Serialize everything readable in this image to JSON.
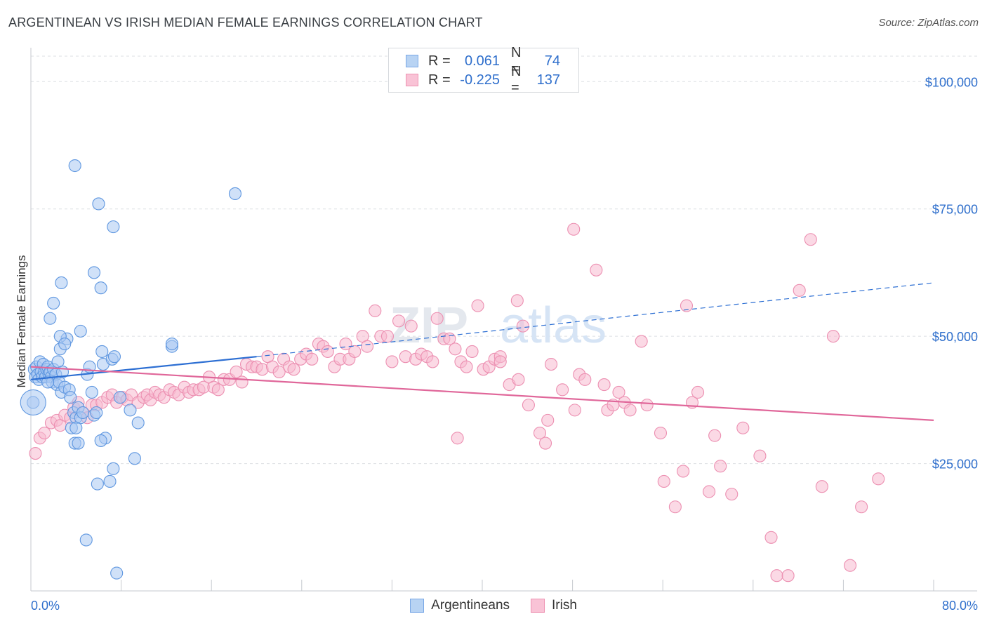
{
  "title": "ARGENTINEAN VS IRISH MEDIAN FEMALE EARNINGS CORRELATION CHART",
  "source": "Source: ZipAtlas.com",
  "watermark": {
    "zip": "ZIP",
    "atlas": "atlas"
  },
  "legend": {
    "r_label": "R =",
    "n_label": "N =",
    "rows": [
      {
        "name": "Argentineans",
        "r": "0.061",
        "n": "74",
        "fill": "#b8d3f3",
        "stroke": "#7aa8e6"
      },
      {
        "name": "Irish",
        "r": "-0.225",
        "n": "137",
        "fill": "#f9c3d6",
        "stroke": "#ee93b2"
      }
    ]
  },
  "colors": {
    "blue_fill": "#a9c9f2",
    "blue_stroke": "#5f97e0",
    "blue_line": "#2d6fd3",
    "pink_fill": "#f7bad0",
    "pink_stroke": "#ec8fb1",
    "pink_line": "#e0679a",
    "tick_label": "#2f6fcc",
    "grid": "#dcdfe3"
  },
  "chart_data": {
    "type": "scatter",
    "title": "ARGENTINEAN VS IRISH MEDIAN FEMALE EARNINGS CORRELATION CHART",
    "xlabel": "",
    "ylabel": "Median Female Earnings",
    "xlim": [
      0,
      80
    ],
    "ylim": [
      0,
      105000
    ],
    "x_tick_labels": [
      "0.0%",
      "80.0%"
    ],
    "y_ticks": [
      25000,
      50000,
      75000,
      100000
    ],
    "y_tick_labels": [
      "$25,000",
      "$50,000",
      "$75,000",
      "$100,000"
    ],
    "series": [
      {
        "name": "Argentineans",
        "color": "blue",
        "trend": {
          "x0": 0,
          "y0": 41500,
          "x1": 20,
          "y1": 46000,
          "dash_x1": 80,
          "dash_y1": 60500
        },
        "points": [
          [
            0.3,
            43500
          ],
          [
            0.4,
            42000
          ],
          [
            0.5,
            44000
          ],
          [
            0.6,
            42500
          ],
          [
            0.7,
            41500
          ],
          [
            0.8,
            45000
          ],
          [
            0.9,
            43000
          ],
          [
            1.0,
            42000
          ],
          [
            1.1,
            44500
          ],
          [
            1.2,
            43000
          ],
          [
            1.3,
            42000
          ],
          [
            1.4,
            43500
          ],
          [
            1.5,
            44000
          ],
          [
            1.6,
            42500
          ],
          [
            1.7,
            43000
          ],
          [
            1.8,
            42000
          ],
          [
            1.9,
            41000
          ],
          [
            2.0,
            43500
          ],
          [
            2.2,
            42500
          ],
          [
            2.3,
            40500
          ],
          [
            2.4,
            45000
          ],
          [
            2.5,
            41000
          ],
          [
            2.6,
            47500
          ],
          [
            2.7,
            39000
          ],
          [
            2.8,
            43000
          ],
          [
            3.0,
            40000
          ],
          [
            3.2,
            49500
          ],
          [
            3.4,
            39500
          ],
          [
            3.5,
            38000
          ],
          [
            3.6,
            32000
          ],
          [
            3.8,
            35000
          ],
          [
            4.0,
            34000
          ],
          [
            4.2,
            36000
          ],
          [
            4.4,
            34000
          ],
          [
            4.6,
            35000
          ],
          [
            5.0,
            42500
          ],
          [
            5.2,
            44000
          ],
          [
            5.4,
            39000
          ],
          [
            5.6,
            34500
          ],
          [
            5.8,
            35000
          ],
          [
            1.5,
            41000
          ],
          [
            1.7,
            53500
          ],
          [
            2.0,
            56500
          ],
          [
            2.6,
            50000
          ],
          [
            2.7,
            60500
          ],
          [
            3.0,
            48500
          ],
          [
            3.9,
            83500
          ],
          [
            4.4,
            51000
          ],
          [
            5.6,
            62500
          ],
          [
            6.2,
            59500
          ],
          [
            6.3,
            47000
          ],
          [
            6.4,
            44500
          ],
          [
            7.2,
            45500
          ],
          [
            7.4,
            46000
          ],
          [
            7.9,
            38000
          ],
          [
            8.8,
            35500
          ],
          [
            9.5,
            33000
          ],
          [
            12.5,
            48000
          ],
          [
            12.5,
            48500
          ],
          [
            18.1,
            78000
          ],
          [
            7.3,
            71500
          ],
          [
            6.0,
            76000
          ],
          [
            5.9,
            21000
          ],
          [
            6.6,
            30000
          ],
          [
            7.0,
            21500
          ],
          [
            7.3,
            24000
          ],
          [
            9.2,
            26000
          ],
          [
            3.9,
            29000
          ],
          [
            4.0,
            32000
          ],
          [
            4.2,
            29000
          ],
          [
            6.2,
            29500
          ],
          [
            4.9,
            10000
          ],
          [
            7.6,
            3500
          ],
          [
            0.2,
            37000
          ]
        ]
      },
      {
        "name": "Irish",
        "color": "pink",
        "trend": {
          "x0": 0,
          "y0": 44000,
          "x1": 80,
          "y1": 33500
        },
        "points": [
          [
            0.4,
            27000
          ],
          [
            0.8,
            30000
          ],
          [
            1.2,
            31000
          ],
          [
            1.8,
            33000
          ],
          [
            2.3,
            33500
          ],
          [
            2.6,
            32500
          ],
          [
            3.0,
            34500
          ],
          [
            3.5,
            34000
          ],
          [
            3.8,
            36000
          ],
          [
            4.2,
            37000
          ],
          [
            4.6,
            35000
          ],
          [
            5.0,
            34000
          ],
          [
            5.4,
            36500
          ],
          [
            5.8,
            36500
          ],
          [
            6.3,
            37000
          ],
          [
            6.8,
            38000
          ],
          [
            7.2,
            38500
          ],
          [
            7.6,
            37000
          ],
          [
            8.1,
            38000
          ],
          [
            8.5,
            37500
          ],
          [
            8.9,
            38500
          ],
          [
            9.5,
            37000
          ],
          [
            10.0,
            38000
          ],
          [
            10.3,
            38500
          ],
          [
            10.6,
            37500
          ],
          [
            11.0,
            39000
          ],
          [
            11.4,
            38500
          ],
          [
            11.8,
            38000
          ],
          [
            12.3,
            39500
          ],
          [
            12.7,
            39000
          ],
          [
            13.1,
            38500
          ],
          [
            13.6,
            40000
          ],
          [
            14.0,
            39000
          ],
          [
            14.4,
            39500
          ],
          [
            14.9,
            39500
          ],
          [
            15.3,
            40000
          ],
          [
            15.8,
            42000
          ],
          [
            16.2,
            40000
          ],
          [
            16.6,
            39500
          ],
          [
            17.1,
            41500
          ],
          [
            17.6,
            41500
          ],
          [
            18.2,
            43000
          ],
          [
            18.7,
            41000
          ],
          [
            19.1,
            44500
          ],
          [
            19.6,
            44000
          ],
          [
            20.0,
            44000
          ],
          [
            20.5,
            43500
          ],
          [
            21.0,
            46000
          ],
          [
            21.4,
            44000
          ],
          [
            22.0,
            43000
          ],
          [
            22.4,
            45500
          ],
          [
            22.9,
            44000
          ],
          [
            23.3,
            43500
          ],
          [
            23.9,
            45500
          ],
          [
            24.4,
            46500
          ],
          [
            24.9,
            45500
          ],
          [
            25.5,
            48500
          ],
          [
            25.9,
            48000
          ],
          [
            26.3,
            47000
          ],
          [
            26.9,
            44000
          ],
          [
            27.4,
            45500
          ],
          [
            27.9,
            48500
          ],
          [
            28.2,
            45500
          ],
          [
            28.7,
            47000
          ],
          [
            29.4,
            50000
          ],
          [
            29.8,
            48000
          ],
          [
            30.5,
            55000
          ],
          [
            31.0,
            50000
          ],
          [
            31.6,
            50000
          ],
          [
            32.0,
            45000
          ],
          [
            32.6,
            53000
          ],
          [
            33.2,
            46000
          ],
          [
            33.7,
            52000
          ],
          [
            34.1,
            45500
          ],
          [
            34.6,
            46500
          ],
          [
            35.1,
            46000
          ],
          [
            35.6,
            45000
          ],
          [
            36.0,
            53500
          ],
          [
            36.6,
            49500
          ],
          [
            37.1,
            49500
          ],
          [
            37.6,
            47500
          ],
          [
            38.1,
            45000
          ],
          [
            38.6,
            44000
          ],
          [
            39.1,
            47000
          ],
          [
            39.6,
            56000
          ],
          [
            40.1,
            43500
          ],
          [
            40.6,
            44000
          ],
          [
            41.1,
            45500
          ],
          [
            41.6,
            46000
          ],
          [
            42.4,
            40500
          ],
          [
            43.1,
            57000
          ],
          [
            43.6,
            52000
          ],
          [
            44.1,
            36500
          ],
          [
            45.1,
            31000
          ],
          [
            45.6,
            29000
          ],
          [
            46.1,
            44500
          ],
          [
            47.1,
            39500
          ],
          [
            48.1,
            71000
          ],
          [
            48.6,
            42500
          ],
          [
            49.1,
            41500
          ],
          [
            50.1,
            63000
          ],
          [
            51.1,
            35500
          ],
          [
            51.6,
            36500
          ],
          [
            52.1,
            39000
          ],
          [
            52.6,
            37000
          ],
          [
            53.1,
            35500
          ],
          [
            54.1,
            49000
          ],
          [
            54.6,
            36500
          ],
          [
            56.1,
            21500
          ],
          [
            57.1,
            16500
          ],
          [
            58.1,
            56000
          ],
          [
            58.6,
            37000
          ],
          [
            59.1,
            39000
          ],
          [
            60.1,
            19500
          ],
          [
            60.6,
            30500
          ],
          [
            61.1,
            24500
          ],
          [
            62.1,
            19000
          ],
          [
            63.1,
            32000
          ],
          [
            64.6,
            26500
          ],
          [
            65.6,
            10500
          ],
          [
            66.1,
            3000
          ],
          [
            67.1,
            3000
          ],
          [
            68.1,
            59000
          ],
          [
            69.1,
            69000
          ],
          [
            70.1,
            20500
          ],
          [
            71.1,
            50000
          ],
          [
            72.6,
            5000
          ],
          [
            73.6,
            16500
          ],
          [
            75.1,
            22000
          ],
          [
            37.8,
            30000
          ],
          [
            41.6,
            45000
          ],
          [
            43.2,
            41500
          ],
          [
            45.8,
            33500
          ],
          [
            48.2,
            35500
          ],
          [
            50.8,
            40500
          ],
          [
            55.8,
            31000
          ],
          [
            57.8,
            23500
          ]
        ]
      }
    ]
  }
}
